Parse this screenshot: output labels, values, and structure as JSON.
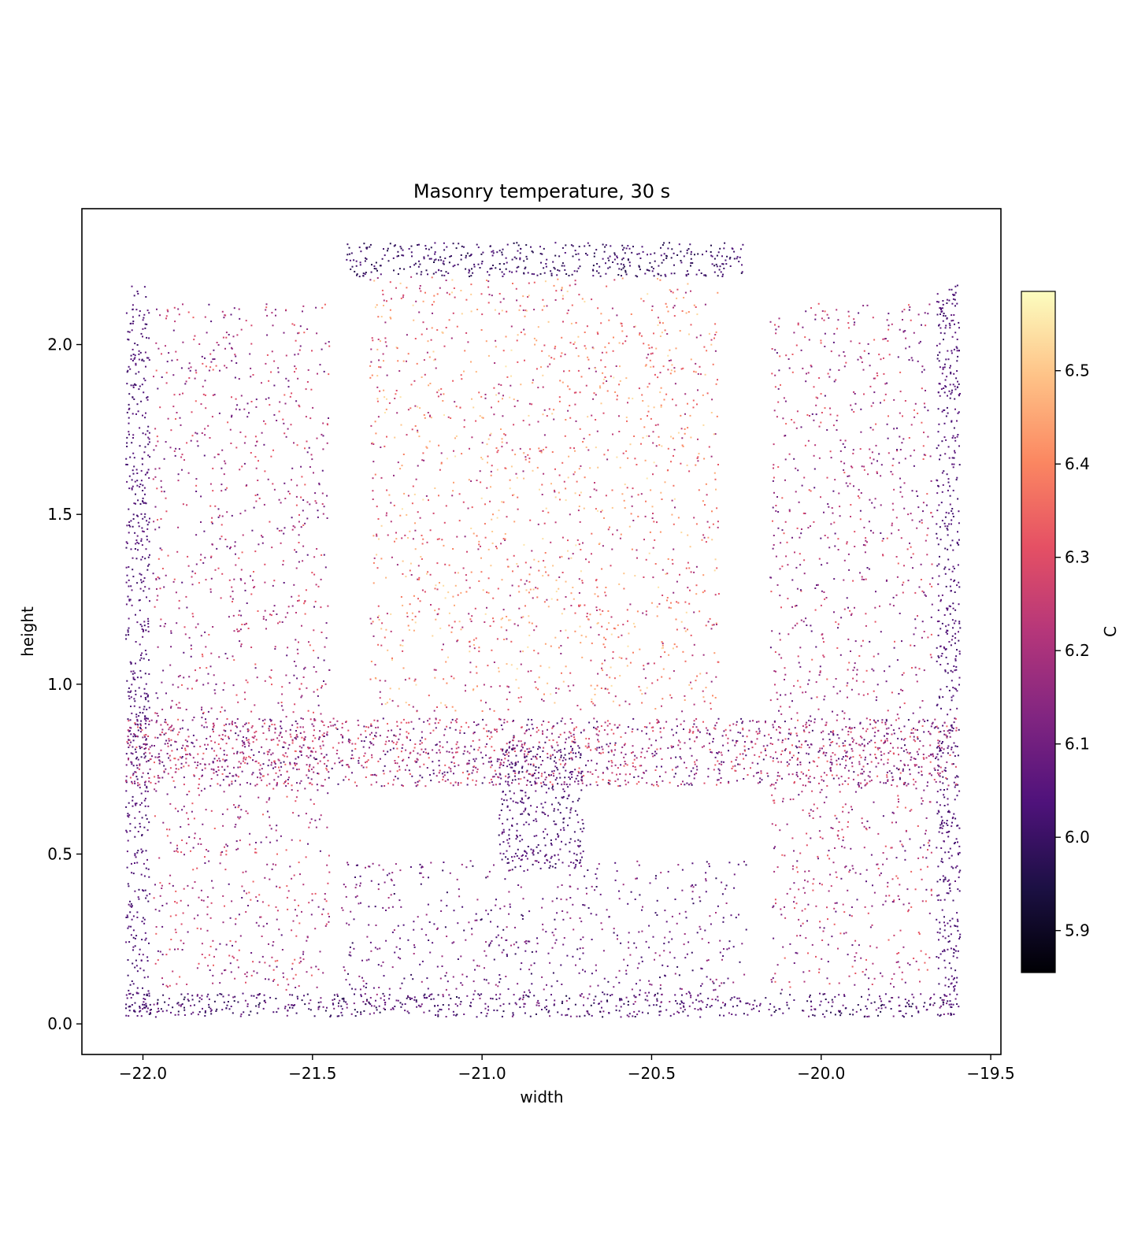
{
  "chart_data": {
    "type": "scatter",
    "title": "Masonry temperature, 30 s",
    "xlabel": "width",
    "ylabel": "height",
    "xlim": [
      -22.18,
      -19.47
    ],
    "ylim": [
      -0.09,
      2.4
    ],
    "xticks": [
      -22.0,
      -21.5,
      -21.0,
      -20.5,
      -20.0,
      -19.5
    ],
    "xtick_labels": [
      "−22.0",
      "−21.5",
      "−21.0",
      "−20.5",
      "−20.0",
      "−19.5"
    ],
    "yticks": [
      0.0,
      0.5,
      1.0,
      1.5,
      2.0
    ],
    "ytick_labels": [
      "0.0",
      "0.5",
      "1.0",
      "1.5",
      "2.0"
    ],
    "grid": false,
    "legend": "none",
    "colormap": "magma",
    "colorbar": {
      "label": "C",
      "range": [
        5.855,
        6.585
      ],
      "ticks": [
        5.9,
        6.0,
        6.1,
        6.2,
        6.3,
        6.4,
        6.5
      ],
      "tick_labels": [
        "5.9",
        "6.0",
        "6.1",
        "6.2",
        "6.3",
        "6.4",
        "6.5"
      ],
      "colors": [
        "#000004",
        "#1c1044",
        "#4f127b",
        "#812581",
        "#b5367a",
        "#e55064",
        "#fb8761",
        "#fec287",
        "#fcfdbf"
      ]
    },
    "marker_size": 1,
    "regions": [
      {
        "name": "outer-left-column-band",
        "x": [
          -22.05,
          -21.98
        ],
        "y": [
          0.02,
          2.18
        ],
        "t": [
          6.0,
          6.08
        ]
      },
      {
        "name": "outer-right-column-band",
        "x": [
          -19.66,
          -19.59
        ],
        "y": [
          0.02,
          2.18
        ],
        "t": [
          6.0,
          6.08
        ]
      },
      {
        "name": "top-block-band",
        "x": [
          -21.4,
          -20.23
        ],
        "y": [
          2.2,
          2.3
        ],
        "t": [
          5.95,
          6.05
        ]
      },
      {
        "name": "bottom-band",
        "x": [
          -22.05,
          -19.6
        ],
        "y": [
          0.02,
          0.09
        ],
        "t": [
          5.95,
          6.12
        ]
      },
      {
        "name": "middle-band",
        "x": [
          -22.05,
          -19.6
        ],
        "y": [
          0.7,
          0.9
        ],
        "t": [
          6.0,
          6.35
        ]
      },
      {
        "name": "left-panel",
        "x": [
          -21.97,
          -21.45
        ],
        "y": [
          0.1,
          2.12
        ],
        "t": [
          6.05,
          6.35
        ]
      },
      {
        "name": "right-panel",
        "x": [
          -20.15,
          -19.67
        ],
        "y": [
          0.1,
          2.12
        ],
        "t": [
          6.05,
          6.35
        ]
      },
      {
        "name": "center-upper-panel",
        "x": [
          -21.33,
          -20.3
        ],
        "y": [
          0.92,
          2.2
        ],
        "t": [
          6.15,
          6.55
        ]
      },
      {
        "name": "center-lower-block",
        "x": [
          -21.42,
          -20.22
        ],
        "y": [
          0.05,
          0.48
        ],
        "t": [
          5.98,
          6.2
        ]
      },
      {
        "name": "center-column",
        "x": [
          -20.95,
          -20.7
        ],
        "y": [
          0.45,
          0.82
        ],
        "t": [
          5.98,
          6.1
        ]
      }
    ],
    "point_count_estimate": 9000
  }
}
